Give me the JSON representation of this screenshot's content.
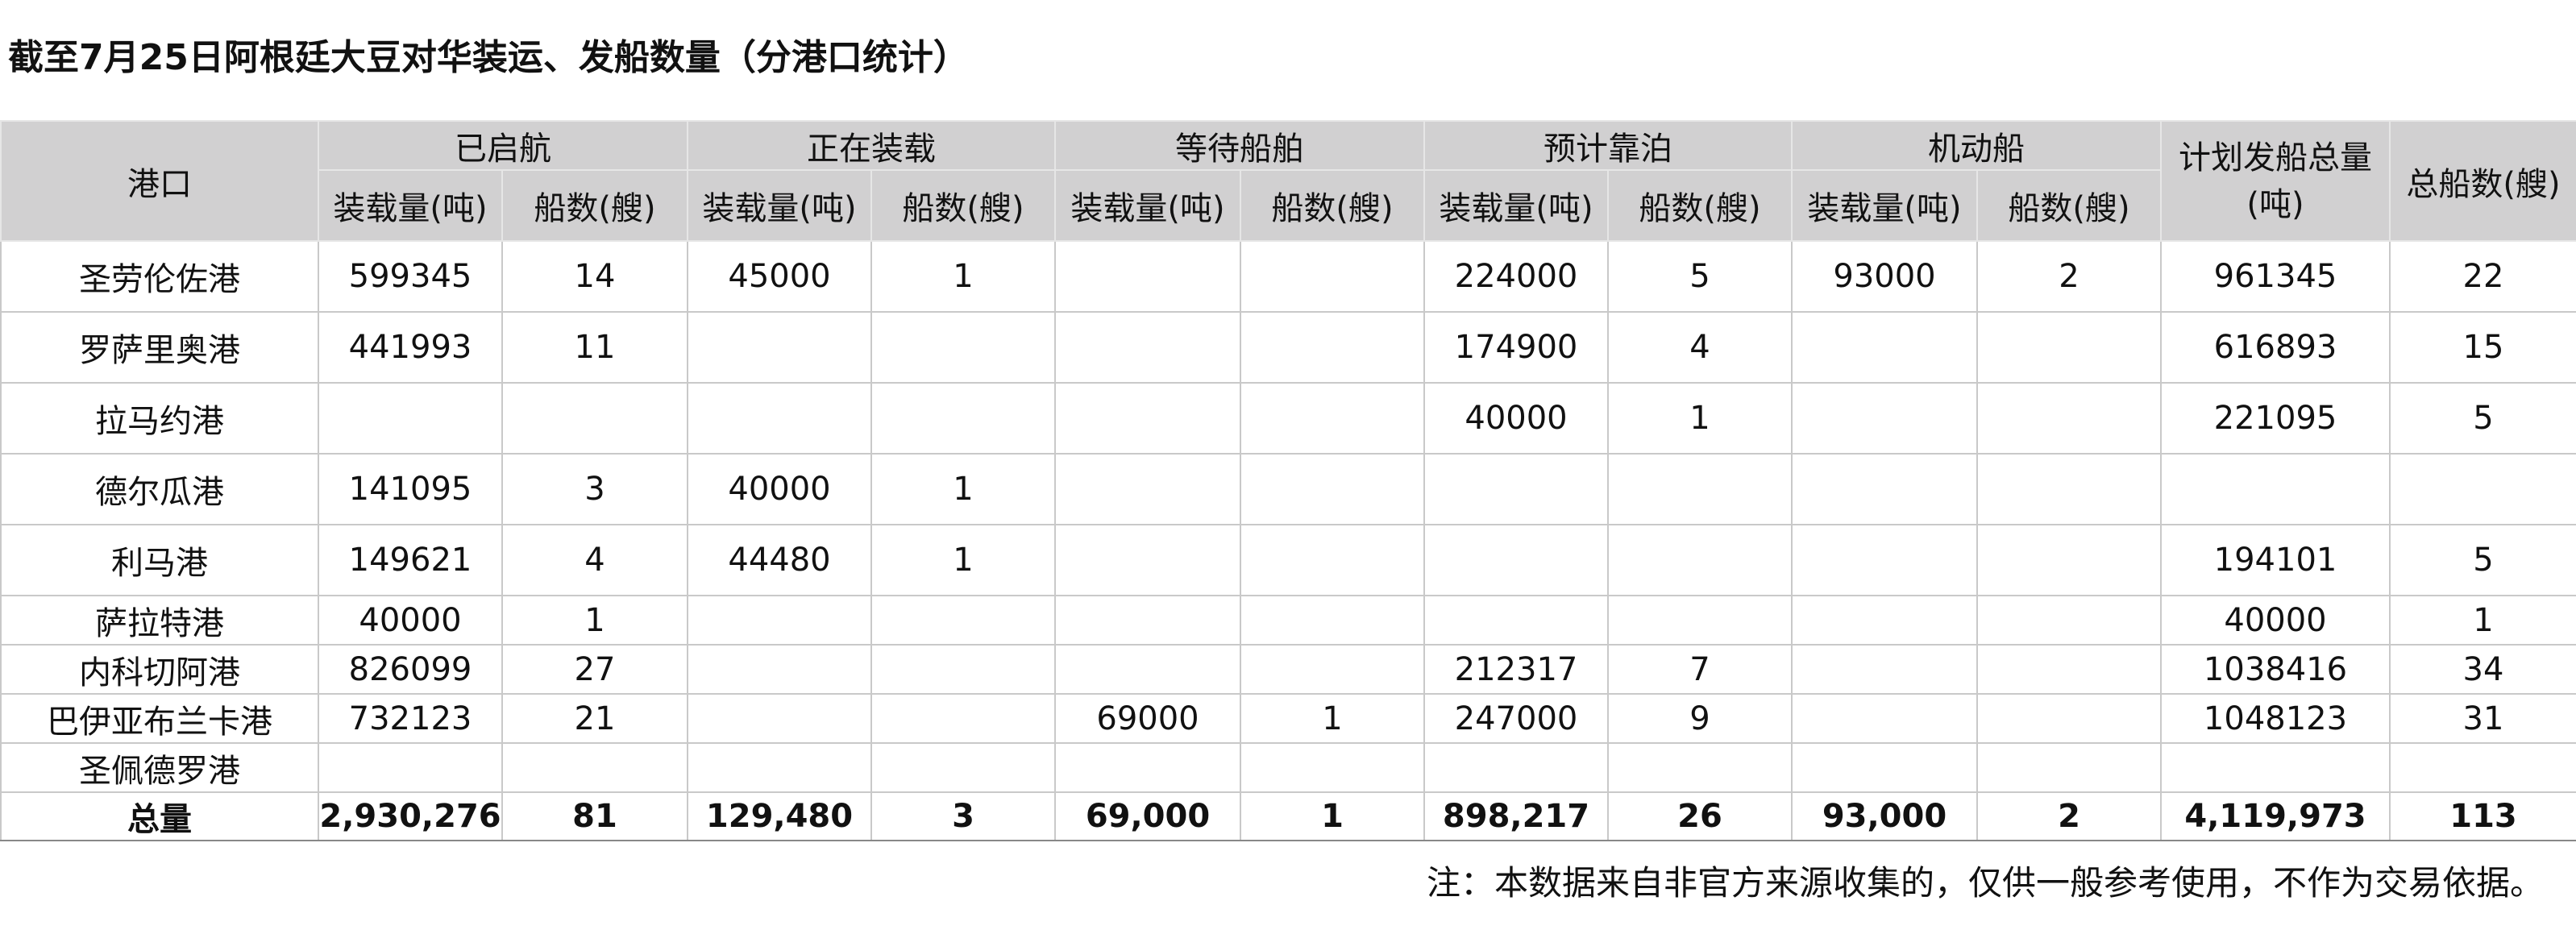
{
  "title": "截至7月25日阿根廷大豆对华装运、发船数量（分港口统计）",
  "header": {
    "port": "港口",
    "groups": [
      "已启航",
      "正在装载",
      "等待船舶",
      "预计靠泊",
      "机动船"
    ],
    "sub_load": "装载量(吨)",
    "sub_ships": "船数(艘)",
    "planned_total": "计划发船总量(吨)",
    "total_ships": "总船数(艘)"
  },
  "rows": [
    {
      "port": "圣劳伦佐港",
      "cells": [
        "599345",
        "14",
        "45000",
        "1",
        "",
        "",
        "224000",
        "5",
        "93000",
        "2",
        "961345",
        "22"
      ]
    },
    {
      "port": "罗萨里奥港",
      "cells": [
        "441993",
        "11",
        "",
        "",
        "",
        "",
        "174900",
        "4",
        "",
        "",
        "616893",
        "15"
      ]
    },
    {
      "port": "拉马约港",
      "cells": [
        "",
        "",
        "",
        "",
        "",
        "",
        "40000",
        "1",
        "",
        "",
        "221095",
        "5"
      ]
    },
    {
      "port": "德尔瓜港",
      "cells": [
        "141095",
        "3",
        "40000",
        "1",
        "",
        "",
        "",
        "",
        "",
        "",
        "",
        ""
      ]
    },
    {
      "port": "利马港",
      "cells": [
        "149621",
        "4",
        "44480",
        "1",
        "",
        "",
        "",
        "",
        "",
        "",
        "194101",
        "5"
      ]
    },
    {
      "port": "萨拉特港",
      "cells": [
        "40000",
        "1",
        "",
        "",
        "",
        "",
        "",
        "",
        "",
        "",
        "40000",
        "1"
      ]
    },
    {
      "port": "内科切阿港",
      "cells": [
        "826099",
        "27",
        "",
        "",
        "",
        "",
        "212317",
        "7",
        "",
        "",
        "1038416",
        "34"
      ]
    },
    {
      "port": "巴伊亚布兰卡港",
      "cells": [
        "732123",
        "21",
        "",
        "",
        "69000",
        "1",
        "247000",
        "9",
        "",
        "",
        "1048123",
        "31"
      ]
    },
    {
      "port": "圣佩德罗港",
      "cells": [
        "",
        "",
        "",
        "",
        "",
        "",
        "",
        "",
        "",
        "",
        "",
        ""
      ]
    }
  ],
  "total": {
    "label": "总量",
    "cells": [
      "2,930,276",
      "81",
      "129,480",
      "3",
      "69,000",
      "1",
      "898,217",
      "26",
      "93,000",
      "2",
      "4,119,973",
      "113"
    ]
  },
  "note": "注：本数据来自非官方来源收集的，仅供一般参考使用，不作为交易依据。"
}
